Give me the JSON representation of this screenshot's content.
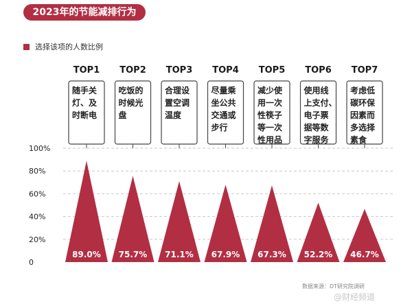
{
  "header": {
    "title": "2023年的节能减排行为"
  },
  "legend": {
    "label": "选择该项的人数比例",
    "color": "#b22f43"
  },
  "footer": {
    "source": "数据来源：DT研究院调研",
    "watermark": "@财经频道"
  },
  "chart_data": {
    "type": "bar",
    "title": "2023年的节能减排行为",
    "categories": [
      "TOP1",
      "TOP2",
      "TOP3",
      "TOP4",
      "TOP5",
      "TOP6",
      "TOP7"
    ],
    "descriptions": [
      [
        "随手关",
        "灯、及",
        "时断电"
      ],
      [
        "吃饭的",
        "时候光",
        "盘"
      ],
      [
        "合理设",
        "置空调",
        "温度"
      ],
      [
        "尽量乘",
        "坐公共",
        "交通或",
        "步行"
      ],
      [
        "减少使",
        "用一次",
        "性筷子",
        "等一次",
        "性用品"
      ],
      [
        "使用线",
        "上支付、",
        "电子票",
        "据等数",
        "字服务"
      ],
      [
        "考虑低",
        "碳环保",
        "因素而",
        "多选择",
        "素食"
      ]
    ],
    "series": [
      {
        "name": "选择该项的人数比例",
        "values": [
          89.0,
          75.7,
          71.1,
          67.9,
          67.3,
          52.2,
          46.7
        ],
        "labels": [
          "89.0%",
          "75.7%",
          "71.1%",
          "67.9%",
          "67.3%",
          "52.2%",
          "46.7%"
        ]
      }
    ],
    "yticks": [
      "0",
      "20%",
      "40%",
      "60%",
      "80%",
      "100%"
    ],
    "ylim": [
      0,
      100
    ],
    "grid": true,
    "colors": {
      "bar": "#b22f43",
      "grid": "#c9c9c9"
    }
  }
}
